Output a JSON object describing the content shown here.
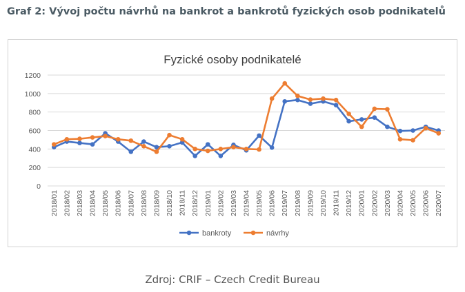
{
  "heading": "Graf 2: Vývoj počtu návrhů na bankrot a bankrotů fyzických osob podnikatelů",
  "source": "Zdroj: CRIF – Czech Credit Bureau",
  "chart_data": {
    "type": "line",
    "title": "Fyzické osoby podnikatelé",
    "xlabel": "",
    "ylabel": "",
    "ylim": [
      0,
      1200
    ],
    "yticks": [
      0,
      200,
      400,
      600,
      800,
      1000,
      1200
    ],
    "grid": true,
    "legend": "bottom",
    "categories": [
      "2018/01",
      "2018/02",
      "2018/03",
      "2018/04",
      "2018/05",
      "2018/06",
      "2018/07",
      "2018/08",
      "2018/09",
      "2018/10",
      "2018/11",
      "2018/12",
      "2019/01",
      "2019/02",
      "2019/03",
      "2019/04",
      "2019/05",
      "2019/06",
      "2019/07",
      "2019/08",
      "2019/09",
      "2019/10",
      "2019/11",
      "2019/12",
      "2020/01",
      "2020/02",
      "2020/03",
      "2020/04",
      "2020/05",
      "2020/06",
      "2020/07"
    ],
    "series": [
      {
        "name": "bankroty",
        "color": "#4472c4",
        "values": [
          420,
          480,
          465,
          450,
          570,
          480,
          370,
          480,
          420,
          430,
          470,
          325,
          450,
          325,
          445,
          385,
          545,
          415,
          915,
          930,
          890,
          915,
          875,
          700,
          720,
          740,
          640,
          595,
          600,
          640,
          600
        ]
      },
      {
        "name": "návrhy",
        "color": "#ed7d31",
        "values": [
          450,
          505,
          510,
          525,
          540,
          505,
          490,
          430,
          370,
          550,
          505,
          400,
          380,
          400,
          420,
          400,
          395,
          945,
          1110,
          975,
          935,
          945,
          930,
          780,
          640,
          835,
          830,
          505,
          495,
          625,
          570
        ]
      }
    ]
  }
}
